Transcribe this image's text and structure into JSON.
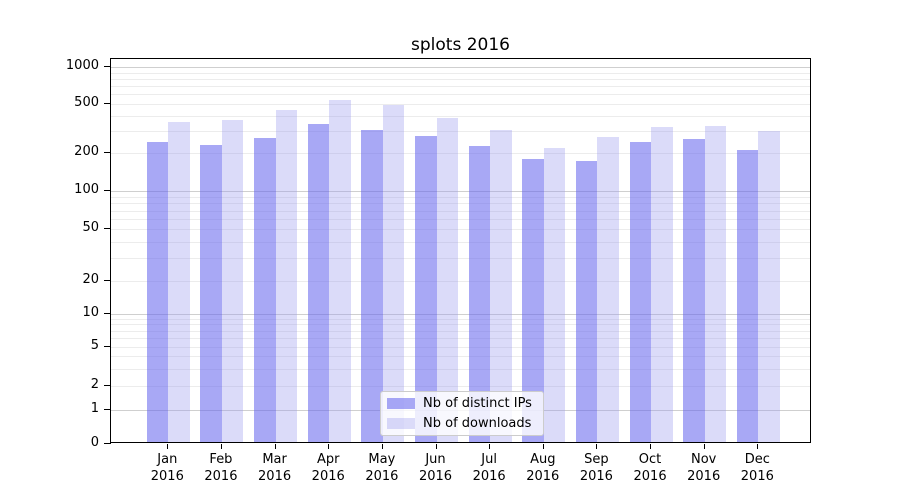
{
  "title": "splots 2016",
  "legend": {
    "items": [
      {
        "label": "Nb of distinct IPs",
        "series_key": "distinct_ips"
      },
      {
        "label": "Nb of downloads",
        "series_key": "downloads"
      }
    ]
  },
  "colors": {
    "distinct_ips": "rgba(102,102,238,0.57)",
    "downloads": "rgba(153,153,238,0.35)",
    "major_grid": "#cfcfcf",
    "minor_grid": "#ececec",
    "axis": "#000000"
  },
  "y_axis": {
    "tick_labels": [
      "0",
      "1",
      "2",
      "5",
      "10",
      "20",
      "50",
      "100",
      "200",
      "500",
      "1000"
    ]
  },
  "chart_data": {
    "type": "bar",
    "title": "splots 2016",
    "categories": [
      "Jan 2016",
      "Feb 2016",
      "Mar 2016",
      "Apr 2016",
      "May 2016",
      "Jun 2016",
      "Jul 2016",
      "Aug 2016",
      "Sep 2016",
      "Oct 2016",
      "Nov 2016",
      "Dec 2016"
    ],
    "series": [
      {
        "name": "Nb of distinct IPs",
        "key": "distinct_ips",
        "values": [
          235,
          225,
          255,
          330,
          295,
          267,
          218,
          173,
          168,
          238,
          251,
          202
        ]
      },
      {
        "name": "Nb of downloads",
        "key": "downloads",
        "values": [
          347,
          358,
          435,
          522,
          478,
          374,
          297,
          212,
          262,
          316,
          322,
          290
        ]
      }
    ],
    "xlabel": "",
    "ylabel": "",
    "yscale": "symlog",
    "yticks": [
      0,
      1,
      2,
      5,
      10,
      20,
      50,
      100,
      200,
      500,
      1000
    ],
    "ylim": [
      0,
      1160
    ],
    "grid": "horizontal major+minor",
    "legend_position": "lower center"
  }
}
